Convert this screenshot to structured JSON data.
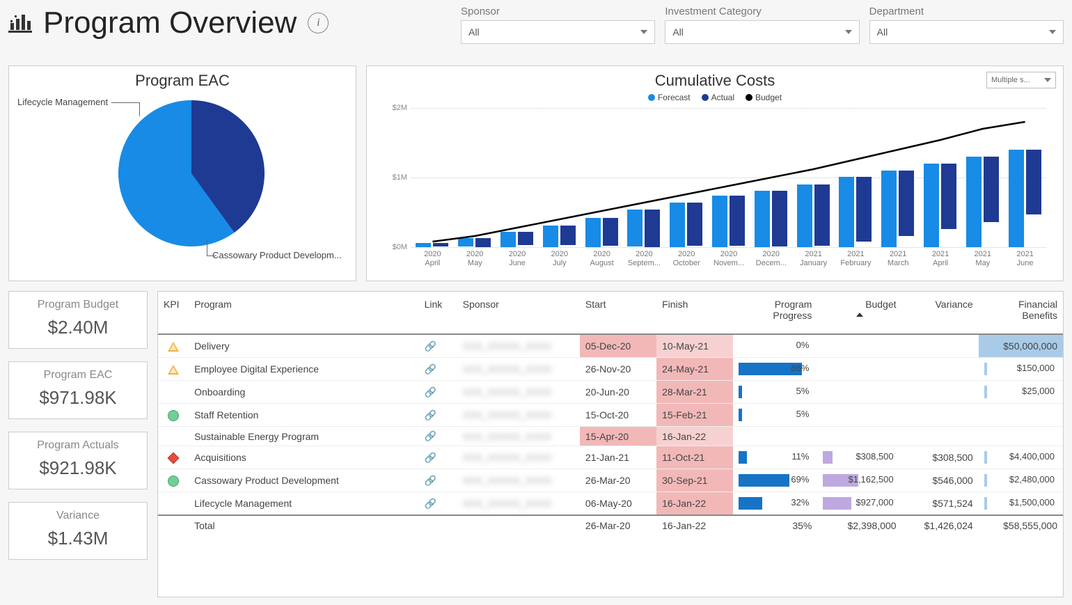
{
  "page_title": "Program Overview",
  "slicers": {
    "sponsor": {
      "label": "Sponsor",
      "value": "All"
    },
    "investment": {
      "label": "Investment Category",
      "value": "All"
    },
    "department": {
      "label": "Department",
      "value": "All"
    }
  },
  "pie_chart": {
    "title": "Program EAC",
    "type": "pie",
    "slices": [
      {
        "label": "Lifecycle Management",
        "value": 0.4,
        "color": "#1f3a93"
      },
      {
        "label": "Cassowary Product Developm...",
        "value": 0.6,
        "color": "#178be6"
      }
    ],
    "background_color": "#ffffff",
    "label_fontsize": 13
  },
  "combo_chart": {
    "title": "Cumulative Costs",
    "type": "bar+line",
    "dropdown_label": "Multiple s...",
    "legend": [
      {
        "label": "Forecast",
        "color": "#178be6"
      },
      {
        "label": "Actual",
        "color": "#1f3a93"
      },
      {
        "label": "Budget",
        "color": "#000000"
      }
    ],
    "y_ticks": [
      "$0M",
      "$1M",
      "$2M"
    ],
    "y_max": 2000000,
    "categories": [
      "2020 April",
      "2020 May",
      "2020 June",
      "2020 July",
      "2020 August",
      "2020 Septem...",
      "2020 October",
      "2020 Novem...",
      "2020 Decem...",
      "2021 January",
      "2021 February",
      "2021 March",
      "2021 April",
      "2021 May",
      "2021 June"
    ],
    "forecast": [
      60000,
      120000,
      220000,
      310000,
      420000,
      530000,
      640000,
      740000,
      810000,
      900000,
      1010000,
      1100000,
      1200000,
      1300000,
      1400000
    ],
    "actual": [
      50000,
      130000,
      190000,
      280000,
      400000,
      540000,
      620000,
      720000,
      800000,
      880000,
      930000,
      940000,
      940000,
      940000,
      930000
    ],
    "budget": [
      80000,
      160000,
      280000,
      400000,
      520000,
      640000,
      760000,
      880000,
      1000000,
      1120000,
      1260000,
      1400000,
      1540000,
      1700000,
      1800000
    ],
    "bar_colors": {
      "forecast": "#178be6",
      "actual": "#1f3a93"
    },
    "line_color": "#000000",
    "line_width": 2.5,
    "grid_color": "#cccccc",
    "background_color": "#ffffff",
    "label_fontsize": 11
  },
  "kpi_cards": [
    {
      "title": "Program Budget",
      "value": "$2.40M"
    },
    {
      "title": "Program EAC",
      "value": "$971.98K"
    },
    {
      "title": "Program Actuals",
      "value": "$921.98K"
    },
    {
      "title": "Variance",
      "value": "$1.43M"
    }
  ],
  "table": {
    "columns": [
      "KPI",
      "Program",
      "Link",
      "Sponsor",
      "Start",
      "Finish",
      "Program Progress",
      "Budget",
      "Variance",
      "Financial Benefits"
    ],
    "sort_col": "Budget",
    "rows": [
      {
        "kpi": "yellow",
        "program": "Delivery",
        "sponsor": "blurred",
        "start": "05-Dec-20",
        "start_hl": "pink",
        "finish": "10-May-21",
        "finish_hl": "pink-l",
        "progress": 0,
        "budget": null,
        "variance": null,
        "fb": "$50,000,000",
        "fb_hl": true
      },
      {
        "kpi": "yellow",
        "program": "Employee Digital Experience",
        "sponsor": "blurred",
        "start": "26-Nov-20",
        "start_hl": null,
        "finish": "24-May-21",
        "finish_hl": "pink",
        "progress": 86,
        "budget": null,
        "variance": null,
        "fb": "$150,000",
        "fb_hl": false
      },
      {
        "kpi": null,
        "program": "Onboarding",
        "sponsor": "blurred",
        "start": "20-Jun-20",
        "start_hl": null,
        "finish": "28-Mar-21",
        "finish_hl": "pink",
        "progress": 5,
        "budget": null,
        "variance": null,
        "fb": "$25,000",
        "fb_hl": false
      },
      {
        "kpi": "green",
        "program": "Staff Retention",
        "sponsor": "blurred",
        "start": "15-Oct-20",
        "start_hl": null,
        "finish": "15-Feb-21",
        "finish_hl": "pink",
        "progress": 5,
        "budget": null,
        "variance": null,
        "fb": null,
        "fb_hl": false
      },
      {
        "kpi": null,
        "program": "Sustainable Energy Program",
        "sponsor": "blurred",
        "start": "15-Apr-20",
        "start_hl": "pink",
        "finish": "16-Jan-22",
        "finish_hl": "pink-l",
        "progress": null,
        "budget": null,
        "variance": null,
        "fb": null,
        "fb_hl": false
      },
      {
        "kpi": "red",
        "program": "Acquisitions",
        "sponsor": "blurred",
        "start": "21-Jan-21",
        "start_hl": null,
        "finish": "11-Oct-21",
        "finish_hl": "pink",
        "progress": 11,
        "budget": "$308,500",
        "budget_bar": 0.13,
        "variance": "$308,500",
        "fb": "$4,400,000",
        "fb_hl": false
      },
      {
        "kpi": "green",
        "program": "Cassowary Product Development",
        "sponsor": "blurred",
        "start": "26-Mar-20",
        "start_hl": null,
        "finish": "30-Sep-21",
        "finish_hl": "pink",
        "progress": 69,
        "budget": "$1,162,500",
        "budget_bar": 0.48,
        "variance": "$546,000",
        "fb": "$2,480,000",
        "fb_hl": false
      },
      {
        "kpi": null,
        "program": "Lifecycle Management",
        "sponsor": "blurred",
        "start": "06-May-20",
        "start_hl": null,
        "finish": "16-Jan-22",
        "finish_hl": "pink",
        "progress": 32,
        "budget": "$927,000",
        "budget_bar": 0.39,
        "variance": "$571,524",
        "fb": "$1,500,000",
        "fb_hl": false
      }
    ],
    "total": {
      "label": "Total",
      "start": "26-Mar-20",
      "finish": "16-Jan-22",
      "progress": "35%",
      "budget": "$2,398,000",
      "variance": "$1,426,024",
      "fb": "$58,555,000"
    },
    "colors": {
      "progress_bar": "#1773c6",
      "budget_bar": "#bda9e0",
      "fb_tick": "#a9cbe8",
      "pink": "#f2b8b8",
      "pink_light": "#f7d1d1",
      "kpi_yellow": "#f5b041",
      "kpi_green": "#6fcf97",
      "kpi_red": "#e74c3c"
    }
  }
}
